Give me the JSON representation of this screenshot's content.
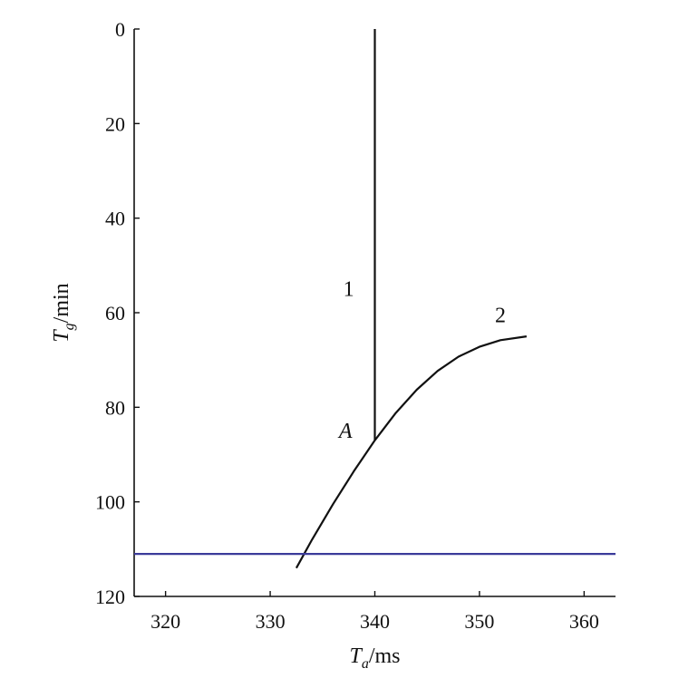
{
  "chart_data": {
    "type": "line",
    "x_axis": {
      "label_symbol": "T",
      "label_subscript": "a",
      "label_unit": "/ms",
      "range": [
        317,
        363
      ],
      "ticks": [
        320,
        330,
        340,
        350,
        360
      ],
      "tick_labels": [
        "320",
        "330",
        "340",
        "350",
        "360"
      ]
    },
    "y_axis": {
      "label_symbol": "T",
      "label_subscript": "g",
      "label_unit": "/min",
      "range": [
        0,
        120
      ],
      "inverted": true,
      "ticks": [
        0,
        20,
        40,
        60,
        80,
        100,
        120
      ],
      "tick_labels": [
        "0",
        "20",
        "40",
        "60",
        "80",
        "100",
        "120"
      ]
    },
    "grid": false,
    "series": [
      {
        "label": "1",
        "color": "#111111",
        "points": [
          [
            340,
            0
          ],
          [
            340,
            87
          ]
        ]
      },
      {
        "label": "2",
        "color": "#111111",
        "points": [
          [
            332.5,
            114
          ],
          [
            334,
            108
          ],
          [
            336,
            100.5
          ],
          [
            338,
            93.5
          ],
          [
            340,
            87
          ],
          [
            342,
            81.2
          ],
          [
            344,
            76.3
          ],
          [
            346,
            72.3
          ],
          [
            348,
            69.3
          ],
          [
            350,
            67.2
          ],
          [
            352,
            65.8
          ],
          [
            354.5,
            65
          ]
        ]
      },
      {
        "label": "",
        "color": "#3b3b9a",
        "points": [
          [
            317,
            111
          ],
          [
            363,
            111
          ]
        ]
      }
    ],
    "annotations": [
      {
        "text": "1",
        "x": 337.5,
        "y": 56.5
      },
      {
        "text": "2",
        "x": 352,
        "y": 62
      },
      {
        "text": "A",
        "x": 337.2,
        "y": 86.5,
        "italic": true
      }
    ]
  }
}
